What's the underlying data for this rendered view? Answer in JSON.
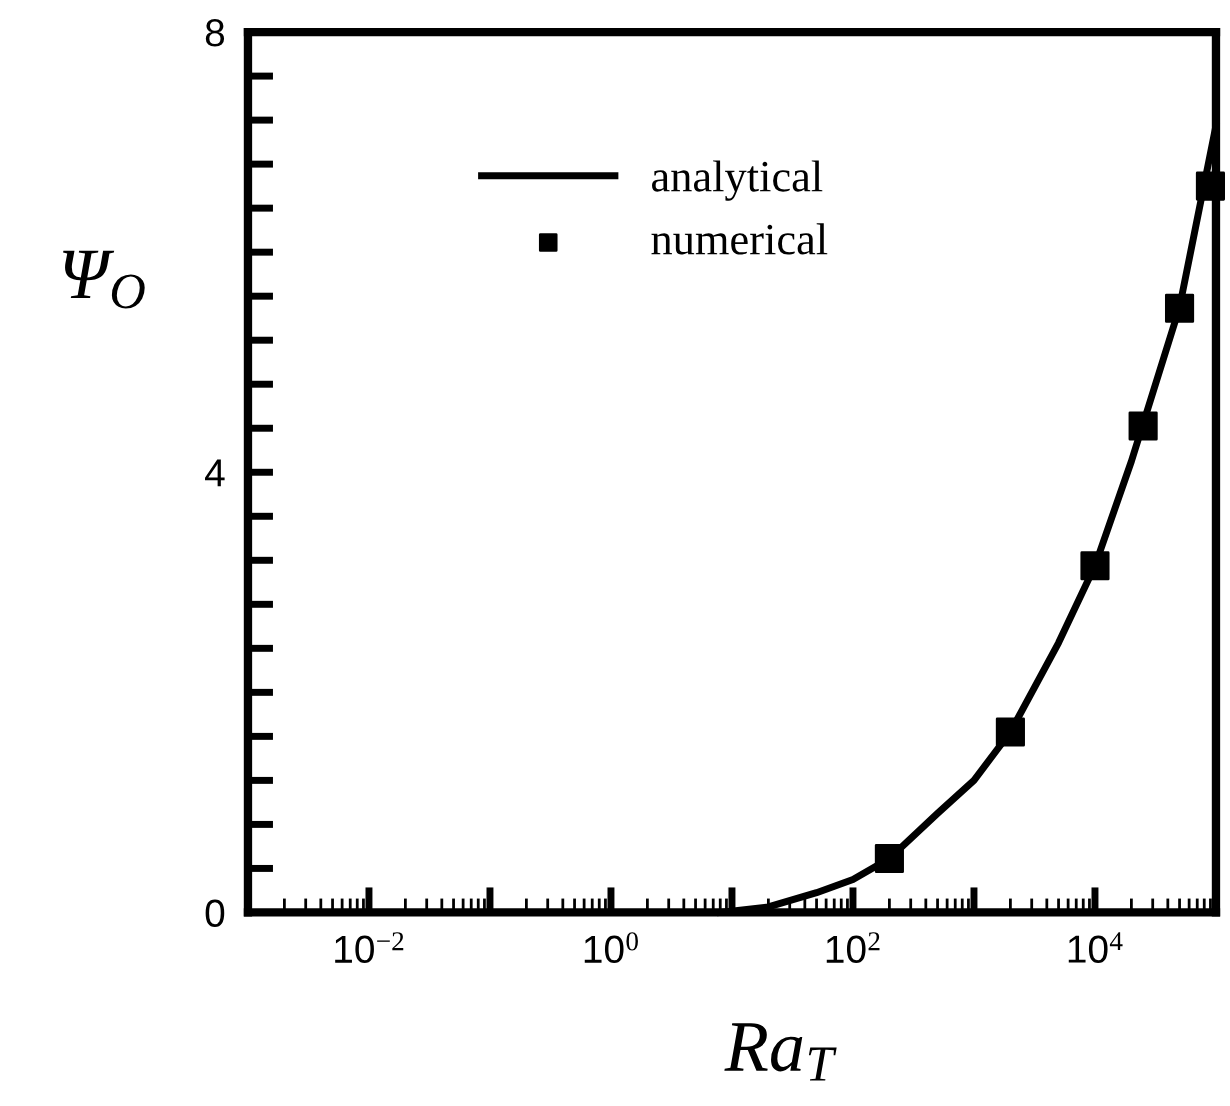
{
  "chart_data": {
    "type": "line",
    "xlabel": "Ra$_{T}$",
    "ylabel": "Ψ$_{O}$",
    "log": "x",
    "xlim": [
      0.001,
      100000
    ],
    "ylim": [
      0,
      8
    ],
    "xticks": [
      {
        "value": 0.001,
        "label": null
      },
      {
        "value": 0.01,
        "label": "10$^{−2}$"
      },
      {
        "value": 0.1,
        "label": null
      },
      {
        "value": 1,
        "label": "10$^{0}$"
      },
      {
        "value": 10,
        "label": null
      },
      {
        "value": 100,
        "label": "10$^{2}$"
      },
      {
        "value": 1000,
        "label": null
      },
      {
        "value": 10000,
        "label": "10$^{4}$"
      }
    ],
    "yticks": [
      0,
      {
        "value": 0.4,
        "label": null
      },
      {
        "value": 0.8,
        "label": null
      },
      {
        "value": 1.2,
        "label": null
      },
      {
        "value": 1.6,
        "label": null
      },
      {
        "value": 2,
        "label": null
      },
      {
        "value": 2.4,
        "label": null
      },
      {
        "value": 2.8,
        "label": null
      },
      {
        "value": 3.2,
        "label": null
      },
      {
        "value": 3.6,
        "label": null
      },
      4,
      {
        "value": 4.4,
        "label": null
      },
      {
        "value": 4.8,
        "label": null
      },
      {
        "value": 5.2,
        "label": null
      },
      {
        "value": 5.6,
        "label": null
      },
      {
        "value": 6,
        "label": null
      },
      {
        "value": 6.4,
        "label": null
      },
      {
        "value": 6.8,
        "label": null
      },
      {
        "value": 7.2,
        "label": null
      },
      {
        "value": 7.6,
        "label": null
      },
      8
    ],
    "grid": false,
    "legend": "top left",
    "series": [
      {
        "name": "analytical",
        "color": "#000000",
        "marker": "none",
        "line_style": "solid",
        "x": [
          8,
          20,
          50,
          100,
          200,
          500,
          1000,
          2000,
          5000,
          10000,
          20000,
          50000,
          100000
        ],
        "values": [
          0,
          0.05,
          0.18,
          0.3,
          0.49,
          0.9,
          1.2,
          1.64,
          2.45,
          3.15,
          4.1,
          5.5,
          7.15
        ]
      },
      {
        "name": "numerical",
        "type": "scatter",
        "color": "#000000",
        "marker": "square",
        "x": [
          200,
          2000,
          10000,
          25000,
          50000,
          90000
        ],
        "values": [
          0.49,
          1.64,
          3.15,
          4.42,
          5.49,
          6.6
        ]
      }
    ]
  }
}
